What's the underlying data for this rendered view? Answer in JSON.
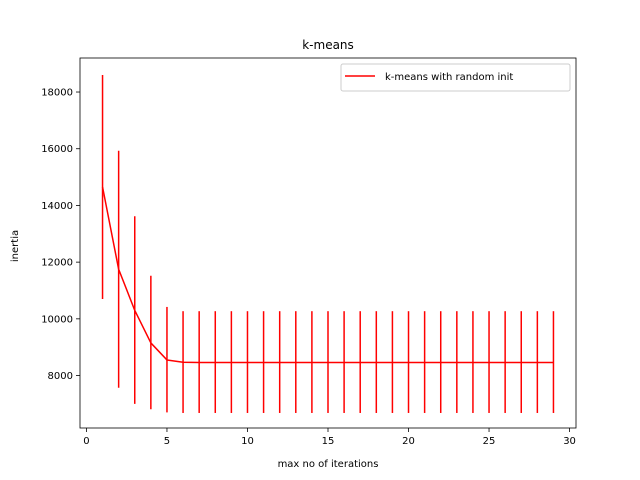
{
  "chart_data": {
    "type": "line",
    "title": "k-means",
    "xlabel": "max no of iterations",
    "ylabel": "inertia",
    "xlim": [
      -0.4,
      30.4
    ],
    "ylim": [
      6150,
      19200
    ],
    "xticks": [
      0,
      5,
      10,
      15,
      20,
      25,
      30
    ],
    "yticks": [
      8000,
      10000,
      12000,
      14000,
      16000,
      18000
    ],
    "grid": false,
    "legend_position": "top-right",
    "series": [
      {
        "name": "k-means with random init",
        "color": "#ff0000",
        "x": [
          1,
          2,
          3,
          4,
          5,
          6,
          7,
          8,
          9,
          10,
          11,
          12,
          13,
          14,
          15,
          16,
          17,
          18,
          19,
          20,
          21,
          22,
          23,
          24,
          25,
          26,
          27,
          28,
          29
        ],
        "values": [
          14650,
          11750,
          10300,
          9150,
          8550,
          8470,
          8460,
          8460,
          8460,
          8460,
          8460,
          8460,
          8460,
          8460,
          8460,
          8460,
          8460,
          8460,
          8460,
          8460,
          8460,
          8460,
          8460,
          8460,
          8460,
          8460,
          8460,
          8460,
          8460
        ],
        "error_low": [
          10700,
          7570,
          7000,
          6810,
          6700,
          6680,
          6680,
          6680,
          6680,
          6680,
          6680,
          6680,
          6680,
          6680,
          6680,
          6680,
          6680,
          6680,
          6680,
          6680,
          6680,
          6680,
          6680,
          6680,
          6680,
          6680,
          6680,
          6680,
          6680
        ],
        "error_high": [
          18600,
          15930,
          13620,
          11520,
          10420,
          10270,
          10270,
          10270,
          10270,
          10270,
          10270,
          10270,
          10270,
          10270,
          10270,
          10270,
          10270,
          10270,
          10270,
          10270,
          10270,
          10270,
          10270,
          10270,
          10270,
          10270,
          10270,
          10270,
          10270
        ]
      }
    ]
  }
}
